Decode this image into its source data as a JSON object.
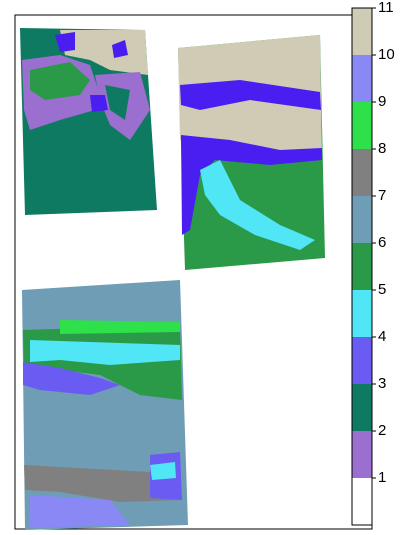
{
  "colorbar": {
    "range": [
      0,
      11
    ],
    "ticks": [
      1,
      2,
      3,
      4,
      5,
      6,
      7,
      8,
      9,
      10,
      11
    ],
    "colors": [
      "#ffffff",
      "#9b6fcf",
      "#0f7a62",
      "#6a5cf2",
      "#50e6f6",
      "#2a9a48",
      "#6e9db5",
      "#808080",
      "#2ee04a",
      "#8a88f5",
      "#cfcbb5",
      "#4a1ef0"
    ]
  }
}
